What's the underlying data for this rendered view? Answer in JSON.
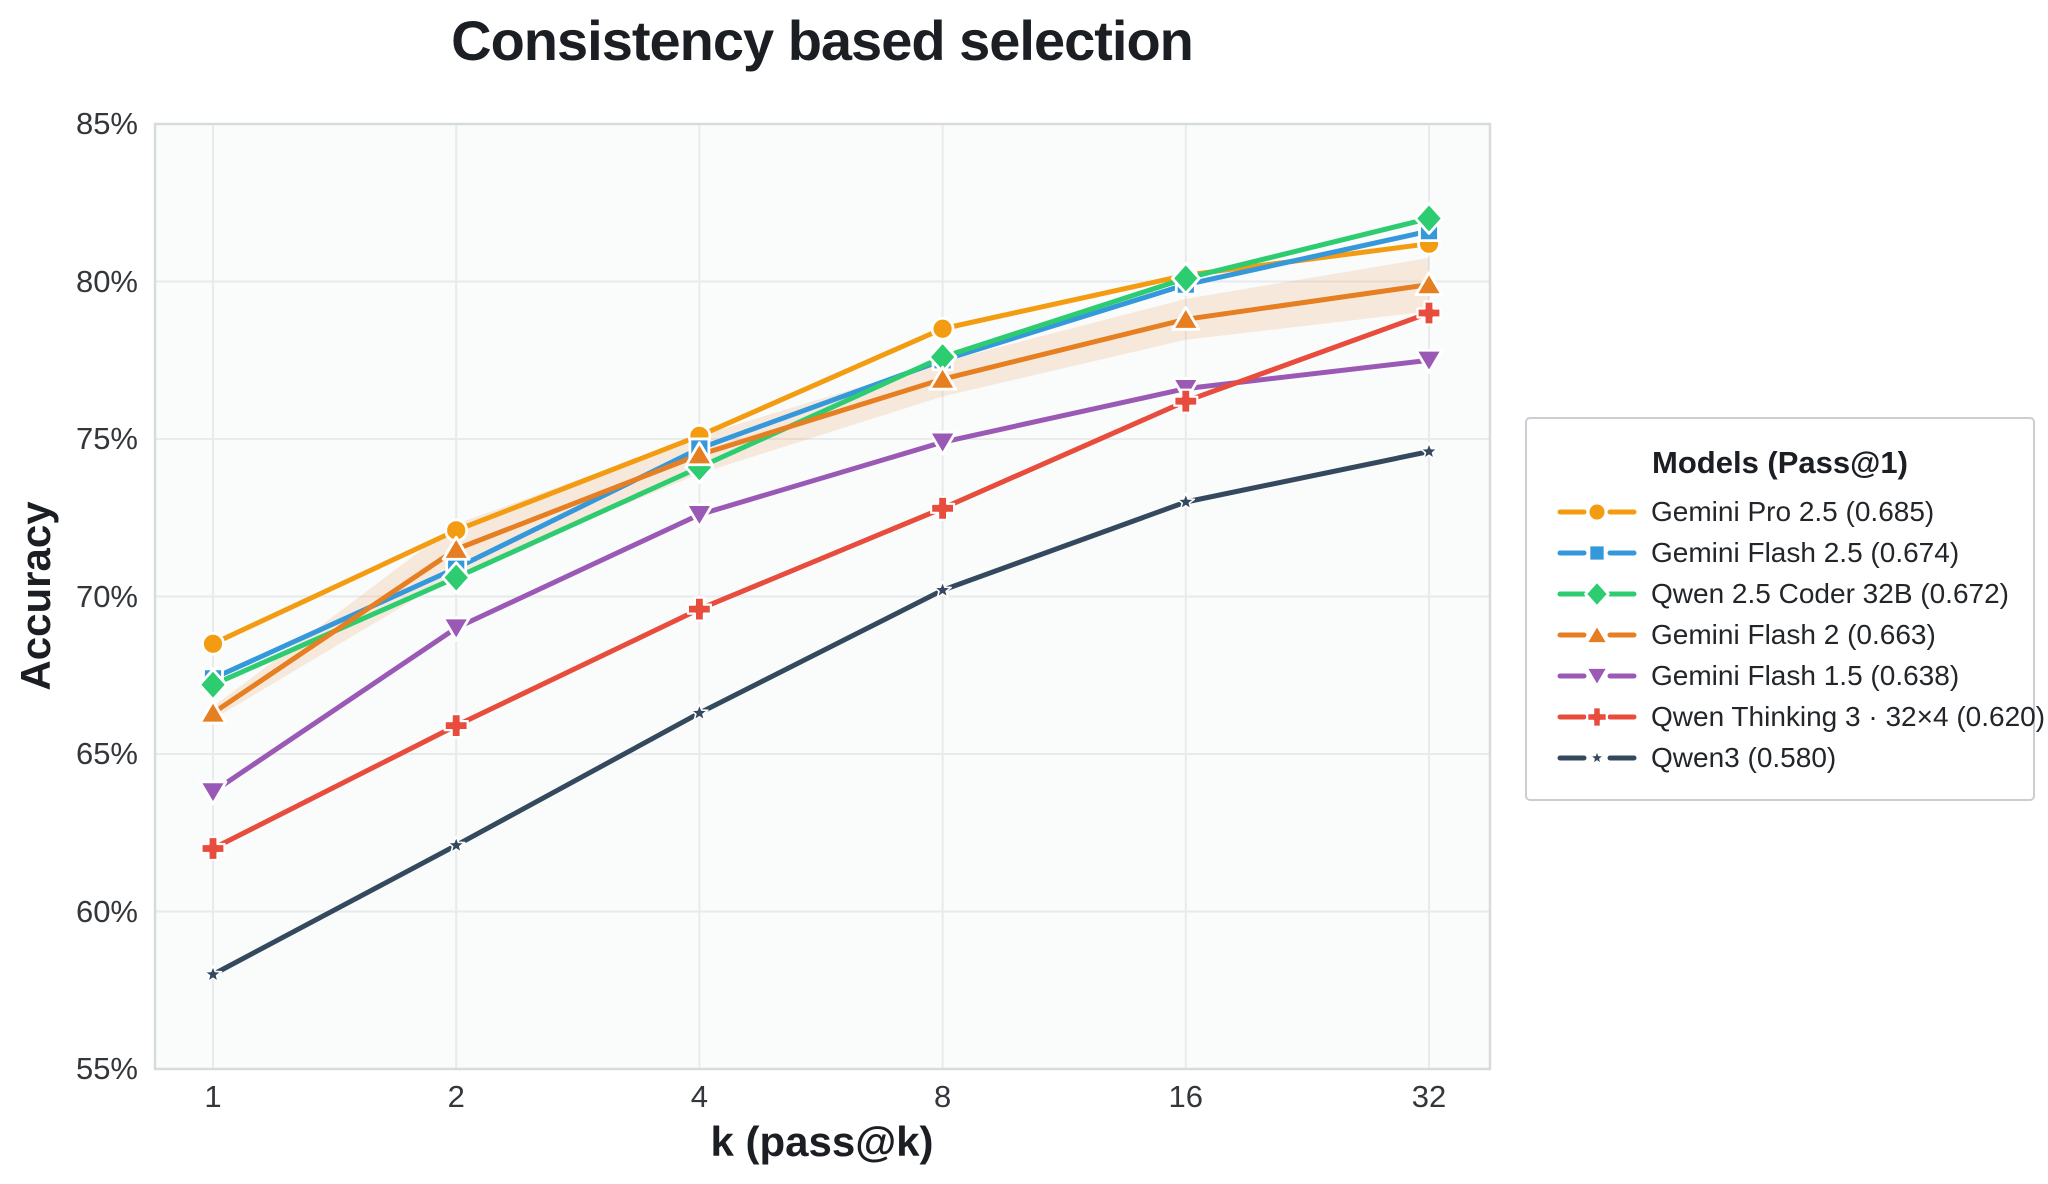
{
  "title": "Consistency based selection",
  "x_axis": {
    "label": "k (pass@k)",
    "ticks": [
      "1",
      "2",
      "4",
      "8",
      "16",
      "32"
    ]
  },
  "y_axis": {
    "label": "Accuracy",
    "ticks": [
      "85%",
      "80%",
      "75%",
      "70%",
      "65%",
      "60%",
      "55%"
    ]
  },
  "legend": {
    "title": "Models (Pass@1)"
  },
  "colors": {
    "plot_background": "#fafbfb",
    "gridline": "#e8eaec",
    "spine": "#d7dbde",
    "text": "#1b1f24",
    "band": "#e67e22"
  },
  "chart_data": {
    "type": "line",
    "x": [
      1,
      2,
      4,
      8,
      16,
      32
    ],
    "x_scale": "log2",
    "title": "Consistency based selection",
    "xlabel": "k (pass@k)",
    "ylabel": "Accuracy",
    "ylim": [
      55,
      85
    ],
    "yticks": [
      85,
      80,
      75,
      70,
      65,
      60,
      55
    ],
    "grid": true,
    "legend_title": "Models (Pass@1)",
    "legend_position": "right-outside",
    "series": [
      {
        "name": "Gemini Pro 2.5 (0.685)",
        "pass_at_1": 0.685,
        "color": "#f39c12",
        "marker": "circle",
        "values": [
          68.5,
          72.1,
          75.1,
          78.5,
          80.2,
          81.2
        ]
      },
      {
        "name": "Gemini Flash 2.5 (0.674)",
        "pass_at_1": 0.674,
        "color": "#3498db",
        "marker": "square",
        "values": [
          67.4,
          70.9,
          74.7,
          77.5,
          79.9,
          81.6
        ]
      },
      {
        "name": "Qwen 2.5 Coder 32B (0.672)",
        "pass_at_1": 0.672,
        "color": "#2ecc71",
        "marker": "diamond",
        "values": [
          67.2,
          70.6,
          74.1,
          77.6,
          80.1,
          82.0
        ]
      },
      {
        "name": "Gemini Flash 2 (0.663)",
        "pass_at_1": 0.663,
        "color": "#e67e22",
        "marker": "triangle-up",
        "values": [
          66.3,
          71.5,
          74.5,
          76.9,
          78.8,
          79.9
        ],
        "band_halfwidth": [
          0.2,
          0.8,
          0.6,
          0.55,
          0.65,
          0.85
        ]
      },
      {
        "name": "Gemini Flash 1.5 (0.638)",
        "pass_at_1": 0.638,
        "color": "#9b59b6",
        "marker": "triangle-down",
        "values": [
          63.8,
          69.0,
          72.6,
          74.9,
          76.6,
          77.5
        ]
      },
      {
        "name": "Qwen Thinking 3 · 32×4 (0.620)",
        "pass_at_1": 0.62,
        "color": "#e74c3c",
        "marker": "plus",
        "values": [
          62.0,
          65.9,
          69.6,
          72.8,
          76.2,
          79.0
        ]
      },
      {
        "name": "Qwen3 (0.580)",
        "pass_at_1": 0.58,
        "color": "#34495e",
        "marker": "star",
        "values": [
          58.0,
          62.1,
          66.3,
          70.2,
          73.0,
          74.6
        ]
      }
    ]
  }
}
